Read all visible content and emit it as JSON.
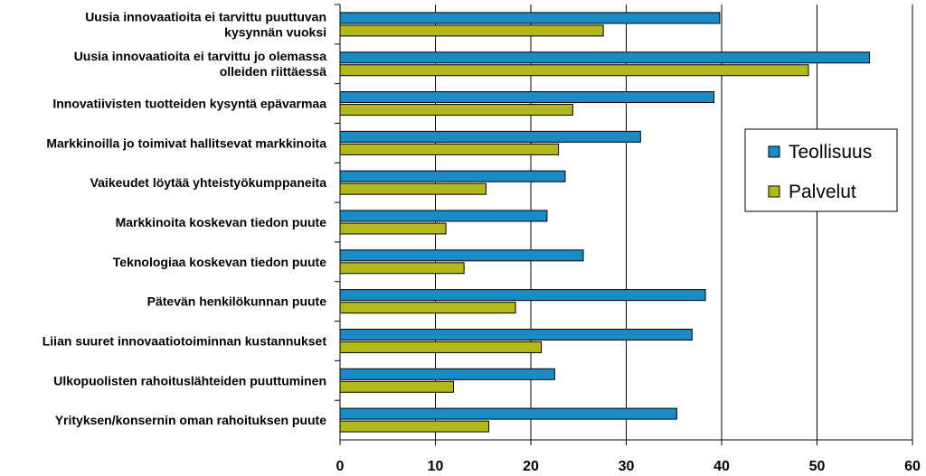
{
  "chart_data": {
    "type": "bar",
    "orientation": "horizontal",
    "categories": [
      [
        "Uusia innovaatioita ei tarvittu puuttuvan",
        "kysynnän vuoksi"
      ],
      [
        "Uusia innovaatioita ei tarvittu jo olemassa",
        "olleiden riittäessä"
      ],
      [
        "Innovatiivisten tuotteiden kysyntä epävarmaa"
      ],
      [
        "Markkinoilla jo toimivat hallitsevat markkinoita"
      ],
      [
        "Vaikeudet löytää yhteistyökumppaneita"
      ],
      [
        "Markkinoita koskevan tiedon puute"
      ],
      [
        "Teknologiaa koskevan tiedon puute"
      ],
      [
        "Pätevän henkilökunnan puute"
      ],
      [
        "Liian suuret innovaatiotoiminnan kustannukset"
      ],
      [
        "Ulkopuolisten rahoituslähteiden puuttuminen"
      ],
      [
        "Yrityksen/konsernin oman rahoituksen puute"
      ]
    ],
    "series": [
      {
        "name": "Teollisuus",
        "color": "#1a8bc4",
        "values": [
          39.8,
          55.5,
          39.2,
          31.5,
          23.6,
          21.7,
          25.5,
          38.3,
          36.9,
          22.5,
          35.3
        ]
      },
      {
        "name": "Palvelut",
        "color": "#b3b81c",
        "values": [
          27.6,
          49.1,
          24.4,
          22.9,
          15.3,
          11.1,
          13.0,
          18.4,
          21.1,
          11.9,
          15.6
        ]
      }
    ],
    "xlim": [
      0,
      60
    ],
    "xticks": [
      0,
      10,
      20,
      30,
      40,
      50,
      60
    ],
    "grid": "vertical",
    "legend_position": "right"
  }
}
